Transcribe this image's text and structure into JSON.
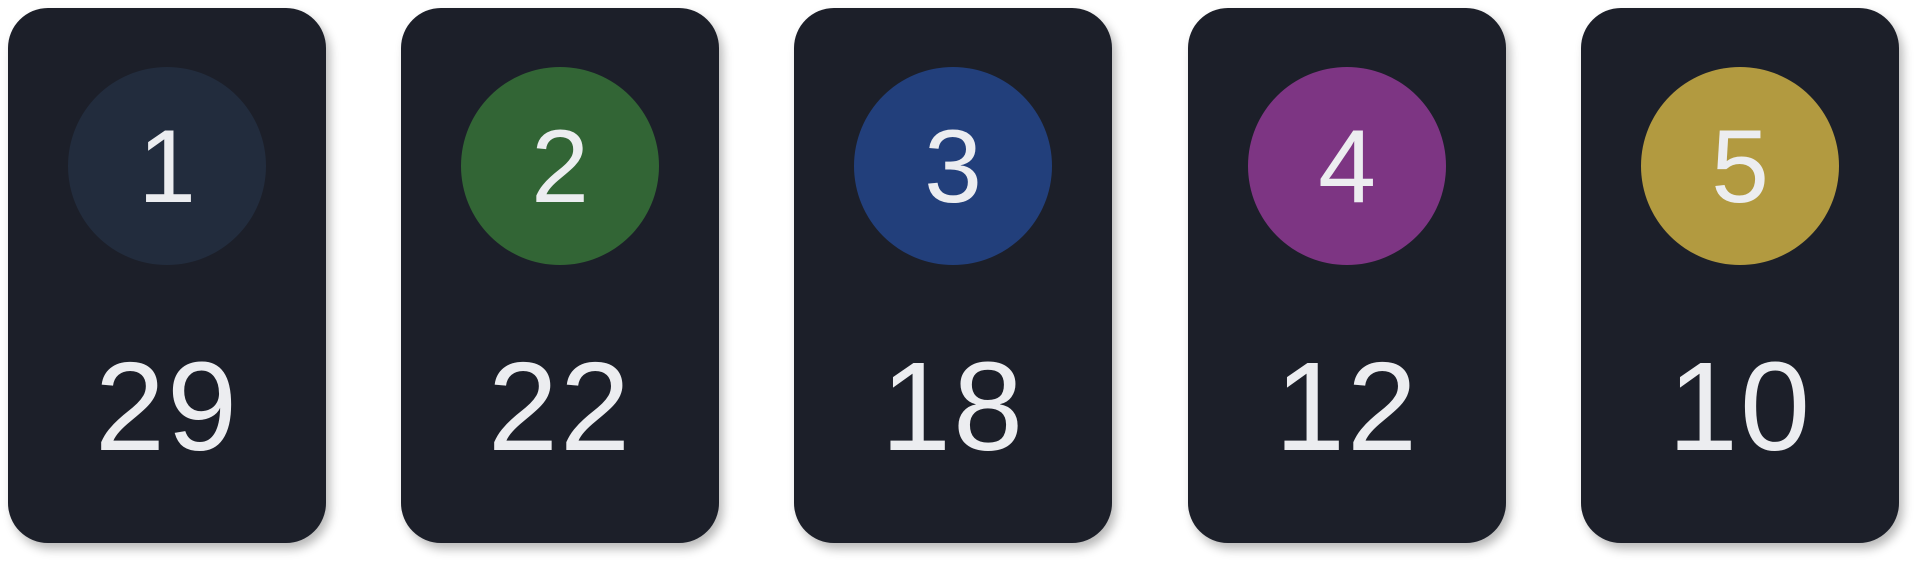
{
  "colors": {
    "card_background": "#1c1f29",
    "text": "#ecedf0"
  },
  "cards": [
    {
      "rank": "1",
      "value": "29",
      "badge_color": "#222c3d"
    },
    {
      "rank": "2",
      "value": "22",
      "badge_color": "#326535"
    },
    {
      "rank": "3",
      "value": "18",
      "badge_color": "#223f7b"
    },
    {
      "rank": "4",
      "value": "12",
      "badge_color": "#7d3583"
    },
    {
      "rank": "5",
      "value": "10",
      "badge_color": "#b29a40"
    }
  ]
}
